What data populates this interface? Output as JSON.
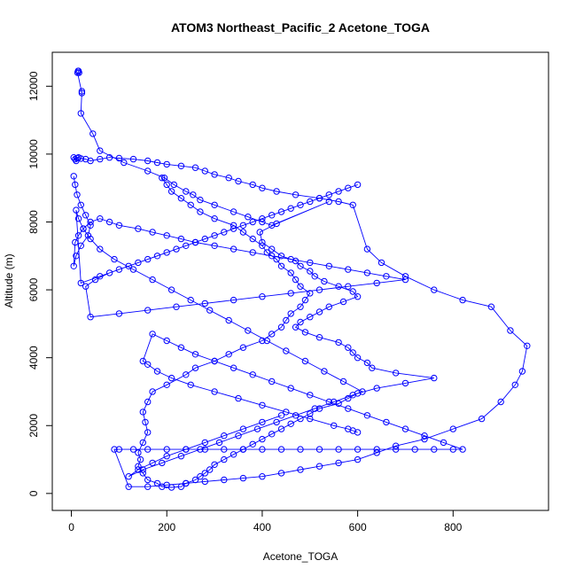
{
  "chart_data": {
    "type": "line",
    "title": "ATOM3 Northeast_Pacific_2 Acetone_TOGA",
    "xlabel": "Acetone_TOGA",
    "ylabel": "Altitude (m)",
    "xlim": [
      -40,
      1000
    ],
    "ylim": [
      -500,
      13000
    ],
    "xticks": [
      0,
      200,
      400,
      600,
      800
    ],
    "yticks": [
      0,
      2000,
      4000,
      6000,
      8000,
      10000,
      12000
    ],
    "grid": false,
    "legend": "none",
    "color": "#0000ff",
    "marker": "open-circle",
    "series": [
      {
        "x": [
          14,
          15,
          16,
          13,
          22,
          22,
          20,
          45,
          60,
          110,
          160,
          195,
          215,
          240,
          255,
          270,
          300,
          340,
          370,
          400,
          420,
          540,
          430,
          395,
          400,
          420,
          440,
          470,
          480,
          500,
          510,
          530,
          560,
          590,
          600,
          570,
          540,
          520,
          500,
          480,
          470,
          490,
          520,
          560,
          580,
          590,
          600,
          620,
          630,
          680,
          760,
          700,
          640,
          600,
          580,
          560,
          520,
          500,
          480,
          460,
          440,
          420,
          400,
          380,
          360,
          340,
          320,
          300,
          290,
          280,
          270,
          260,
          240,
          230,
          210,
          190,
          180,
          160,
          150,
          140,
          145,
          140,
          150,
          160,
          155,
          150,
          160,
          170,
          200,
          240,
          260,
          300,
          330,
          360,
          400,
          420,
          440,
          450,
          460,
          480,
          490,
          500,
          480,
          470,
          460,
          440,
          430,
          410,
          400,
          380,
          360,
          340,
          300,
          270,
          250,
          230,
          210,
          200,
          190
        ],
        "y": [
          12450,
          12450,
          12400,
          12400,
          11800,
          11850,
          11200,
          10600,
          10100,
          9750,
          9500,
          9300,
          9100,
          8900,
          8800,
          8650,
          8500,
          8300,
          8150,
          8000,
          7900,
          8600,
          7950,
          7700,
          7400,
          7200,
          7000,
          6850,
          6700,
          6550,
          6400,
          6250,
          6100,
          5950,
          5800,
          5650,
          5500,
          5350,
          5200,
          5050,
          4900,
          4750,
          4600,
          4450,
          4300,
          4150,
          4000,
          3850,
          3700,
          3550,
          3400,
          3250,
          3100,
          2950,
          2800,
          2650,
          2500,
          2350,
          2200,
          2050,
          1900,
          1750,
          1600,
          1450,
          1300,
          1150,
          1000,
          850,
          700,
          600,
          500,
          400,
          300,
          200,
          180,
          200,
          300,
          400,
          600,
          800,
          1000,
          1200,
          1500,
          1800,
          2100,
          2400,
          2700,
          3000,
          3200,
          3500,
          3700,
          3900,
          4100,
          4300,
          4500,
          4700,
          4900,
          5100,
          5300,
          5500,
          5700,
          5900,
          6100,
          6300,
          6500,
          6700,
          6900,
          7100,
          7300,
          7500,
          7700,
          7900,
          8100,
          8300,
          8500,
          8700,
          8900,
          9100,
          9300
        ]
      },
      {
        "x": [
          5,
          8,
          10,
          12,
          15,
          20,
          30,
          40,
          60,
          80,
          100,
          130,
          160,
          180,
          200,
          230,
          260,
          280,
          300,
          330,
          350,
          380,
          400,
          430,
          470,
          520,
          560,
          590,
          620,
          650,
          700,
          760,
          820,
          880,
          920,
          955,
          945,
          930,
          900,
          860,
          800,
          740,
          680,
          640,
          600,
          560,
          520,
          480,
          440,
          400,
          360,
          320,
          280,
          240,
          200,
          160,
          120,
          90,
          100,
          130,
          160,
          200,
          240,
          280,
          320,
          360,
          400,
          440,
          480,
          520,
          560,
          600,
          640,
          680,
          720,
          760,
          800,
          820,
          780,
          740,
          700,
          660,
          620,
          580,
          540,
          500,
          460,
          420,
          380,
          340,
          300,
          260,
          230,
          200,
          170,
          150,
          160,
          180,
          210,
          250,
          300,
          350,
          400,
          450,
          500,
          550,
          580,
          590,
          600
        ],
        "y": [
          9900,
          9850,
          9800,
          9880,
          9900,
          9870,
          9850,
          9800,
          9850,
          9900,
          9880,
          9850,
          9800,
          9750,
          9700,
          9650,
          9600,
          9500,
          9400,
          9300,
          9200,
          9100,
          9000,
          8900,
          8800,
          8700,
          8600,
          8500,
          7200,
          6800,
          6400,
          6000,
          5700,
          5500,
          4800,
          4350,
          3600,
          3200,
          2700,
          2200,
          1900,
          1600,
          1400,
          1200,
          1000,
          900,
          800,
          700,
          600,
          500,
          450,
          400,
          350,
          300,
          250,
          200,
          200,
          1300,
          1300,
          1300,
          1300,
          1300,
          1300,
          1300,
          1300,
          1300,
          1300,
          1300,
          1300,
          1300,
          1300,
          1300,
          1300,
          1300,
          1300,
          1300,
          1300,
          1300,
          1500,
          1700,
          1900,
          2100,
          2300,
          2500,
          2700,
          2900,
          3100,
          3300,
          3500,
          3700,
          3900,
          4100,
          4300,
          4500,
          4700,
          3900,
          3800,
          3600,
          3400,
          3200,
          3000,
          2800,
          2600,
          2400,
          2200,
          2000,
          1900,
          1850,
          1800
        ]
      },
      {
        "x": [
          5,
          8,
          12,
          20,
          30,
          40,
          35,
          20,
          10,
          5,
          8,
          15,
          25,
          40,
          60,
          80,
          100,
          140,
          170,
          200,
          230,
          260,
          300,
          340,
          380,
          420,
          460,
          500,
          540,
          580,
          620,
          660,
          700,
          640,
          580,
          520,
          460,
          400,
          340,
          280,
          220,
          160,
          100,
          40,
          30,
          50,
          80,
          120,
          160,
          200,
          240,
          280,
          320,
          360,
          400,
          440,
          480,
          520,
          560,
          600,
          580,
          540,
          500,
          460,
          420,
          380,
          340,
          300,
          260,
          220,
          180,
          140,
          100,
          60,
          20,
          10,
          15,
          25,
          40,
          60,
          90,
          130,
          170,
          210,
          250,
          290,
          330,
          370,
          410,
          450,
          490,
          530,
          570,
          610,
          590,
          550,
          510,
          470,
          430,
          390,
          350,
          310,
          270,
          230,
          190,
          150,
          120,
          140,
          170,
          200,
          240,
          280,
          320,
          360,
          400,
          440
        ],
        "y": [
          9350,
          9100,
          8800,
          8500,
          8200,
          7900,
          7600,
          7300,
          7000,
          6700,
          7400,
          7600,
          7800,
          8000,
          8100,
          8000,
          7900,
          7800,
          7700,
          7600,
          7500,
          7400,
          7300,
          7200,
          7100,
          7000,
          6900,
          6800,
          6700,
          6600,
          6500,
          6400,
          6300,
          6200,
          6100,
          6000,
          5900,
          5800,
          5700,
          5600,
          5500,
          5400,
          5300,
          5200,
          6100,
          6300,
          6500,
          6700,
          6900,
          7100,
          7300,
          7500,
          7700,
          7900,
          8100,
          8300,
          8500,
          8700,
          8900,
          9100,
          9000,
          8800,
          8600,
          8400,
          8200,
          8000,
          7800,
          7600,
          7400,
          7200,
          7000,
          6800,
          6600,
          6400,
          6200,
          8350,
          8100,
          7800,
          7500,
          7200,
          6900,
          6600,
          6300,
          6000,
          5700,
          5400,
          5100,
          4800,
          4500,
          4200,
          3900,
          3600,
          3300,
          3000,
          2900,
          2700,
          2500,
          2300,
          2100,
          1900,
          1700,
          1500,
          1300,
          1100,
          900,
          700,
          500,
          700,
          900,
          1100,
          1300,
          1500,
          1700,
          1900,
          2100,
          2300
        ]
      }
    ]
  }
}
